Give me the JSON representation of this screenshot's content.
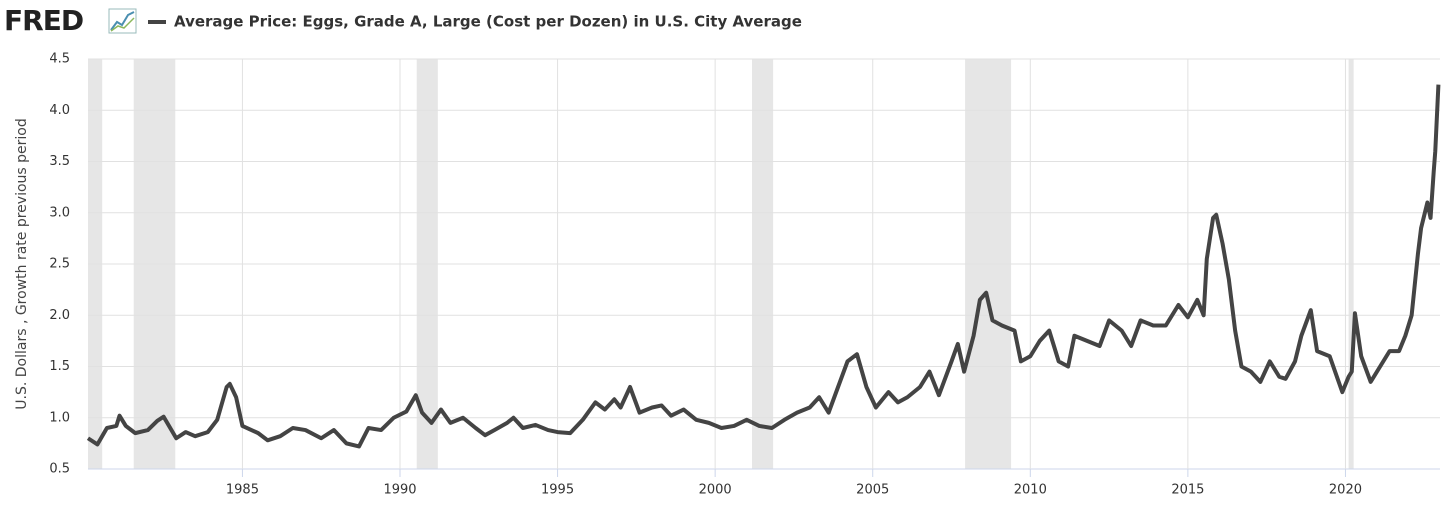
{
  "chart_data": {
    "type": "line",
    "logo": "FRED",
    "title": "Average Price: Eggs, Grade A, Large (Cost per Dozen) in U.S. City Average",
    "ylabel": "U.S. Dollars , Growth rate previous period",
    "xlim": [
      1980.1,
      2023.0
    ],
    "ylim": [
      0.5,
      4.5
    ],
    "xticks": [
      1985,
      1990,
      1995,
      2000,
      2005,
      2010,
      2015,
      2020
    ],
    "yticks": [
      0.5,
      {
        "value": 1,
        "label": "1.0"
      },
      1.5,
      {
        "value": 2,
        "label": "2.0"
      },
      2.5,
      {
        "value": 3,
        "label": "3.0"
      },
      3.5,
      {
        "value": 4,
        "label": "4.0"
      },
      4.5
    ],
    "grid": true,
    "recessions": [
      [
        1980.1,
        1980.55
      ],
      [
        1981.55,
        1982.87
      ],
      [
        1990.53,
        1991.2
      ],
      [
        2001.17,
        2001.84
      ],
      [
        2007.93,
        2009.39
      ],
      [
        2020.1,
        2020.26
      ]
    ],
    "recession_color": "#e6e6e6",
    "series": [
      {
        "name": "Average Price: Eggs, Grade A, Large (Cost per Dozen) in U.S. City Average",
        "color": "#444444",
        "x": [
          1980.1,
          1980.4,
          1980.7,
          1981.0,
          1981.1,
          1981.3,
          1981.6,
          1982.0,
          1982.3,
          1982.5,
          1982.9,
          1983.2,
          1983.5,
          1983.9,
          1984.2,
          1984.5,
          1984.6,
          1984.8,
          1985.0,
          1985.5,
          1985.8,
          1986.2,
          1986.6,
          1987.0,
          1987.5,
          1987.9,
          1988.3,
          1988.7,
          1989.0,
          1989.4,
          1989.8,
          1990.2,
          1990.5,
          1990.7,
          1991.0,
          1991.3,
          1991.6,
          1992.0,
          1992.4,
          1992.7,
          1993.0,
          1993.4,
          1993.6,
          1993.9,
          1994.3,
          1994.7,
          1995.0,
          1995.4,
          1995.8,
          1996.2,
          1996.5,
          1996.8,
          1997.0,
          1997.3,
          1997.6,
          1998.0,
          1998.3,
          1998.6,
          1999.0,
          1999.4,
          1999.8,
          2000.2,
          2000.6,
          2001.0,
          2001.4,
          2001.8,
          2002.2,
          2002.6,
          2003.0,
          2003.3,
          2003.6,
          2003.9,
          2004.2,
          2004.5,
          2004.8,
          2005.1,
          2005.5,
          2005.8,
          2006.1,
          2006.5,
          2006.8,
          2007.1,
          2007.5,
          2007.7,
          2007.9,
          2008.2,
          2008.4,
          2008.6,
          2008.8,
          2009.1,
          2009.5,
          2009.7,
          2010.0,
          2010.3,
          2010.6,
          2010.9,
          2011.2,
          2011.4,
          2011.8,
          2012.2,
          2012.5,
          2012.9,
          2013.2,
          2013.5,
          2013.9,
          2014.3,
          2014.7,
          2015.0,
          2015.3,
          2015.5,
          2015.6,
          2015.8,
          2015.9,
          2016.1,
          2016.3,
          2016.5,
          2016.7,
          2017.0,
          2017.3,
          2017.6,
          2017.9,
          2018.1,
          2018.4,
          2018.6,
          2018.9,
          2019.1,
          2019.5,
          2019.9,
          2020.1,
          2020.2,
          2020.3,
          2020.5,
          2020.8,
          2021.1,
          2021.4,
          2021.7,
          2021.9,
          2022.1,
          2022.3,
          2022.4,
          2022.6,
          2022.7,
          2022.8,
          2022.85,
          2022.95
        ],
        "values": [
          0.8,
          0.74,
          0.9,
          0.92,
          1.02,
          0.92,
          0.85,
          0.88,
          0.97,
          1.01,
          0.8,
          0.86,
          0.82,
          0.86,
          0.98,
          1.3,
          1.33,
          1.2,
          0.92,
          0.85,
          0.78,
          0.82,
          0.9,
          0.88,
          0.8,
          0.88,
          0.75,
          0.72,
          0.9,
          0.88,
          1.0,
          1.06,
          1.22,
          1.05,
          0.95,
          1.08,
          0.95,
          1.0,
          0.9,
          0.83,
          0.88,
          0.95,
          1.0,
          0.9,
          0.93,
          0.88,
          0.86,
          0.85,
          0.98,
          1.15,
          1.08,
          1.18,
          1.1,
          1.3,
          1.05,
          1.1,
          1.12,
          1.02,
          1.08,
          0.98,
          0.95,
          0.9,
          0.92,
          0.98,
          0.92,
          0.9,
          0.98,
          1.05,
          1.1,
          1.2,
          1.05,
          1.3,
          1.55,
          1.62,
          1.3,
          1.1,
          1.25,
          1.15,
          1.2,
          1.3,
          1.45,
          1.22,
          1.55,
          1.72,
          1.45,
          1.8,
          2.15,
          2.22,
          1.95,
          1.9,
          1.85,
          1.55,
          1.6,
          1.75,
          1.85,
          1.55,
          1.5,
          1.8,
          1.75,
          1.7,
          1.95,
          1.85,
          1.7,
          1.95,
          1.9,
          1.9,
          2.1,
          1.98,
          2.15,
          2.0,
          2.55,
          2.95,
          2.98,
          2.7,
          2.35,
          1.85,
          1.5,
          1.45,
          1.35,
          1.55,
          1.4,
          1.38,
          1.55,
          1.8,
          2.05,
          1.65,
          1.6,
          1.25,
          1.4,
          1.45,
          2.02,
          1.6,
          1.35,
          1.5,
          1.65,
          1.65,
          1.8,
          2.0,
          2.6,
          2.85,
          3.1,
          2.95,
          3.4,
          3.6,
          4.25
        ]
      }
    ]
  }
}
